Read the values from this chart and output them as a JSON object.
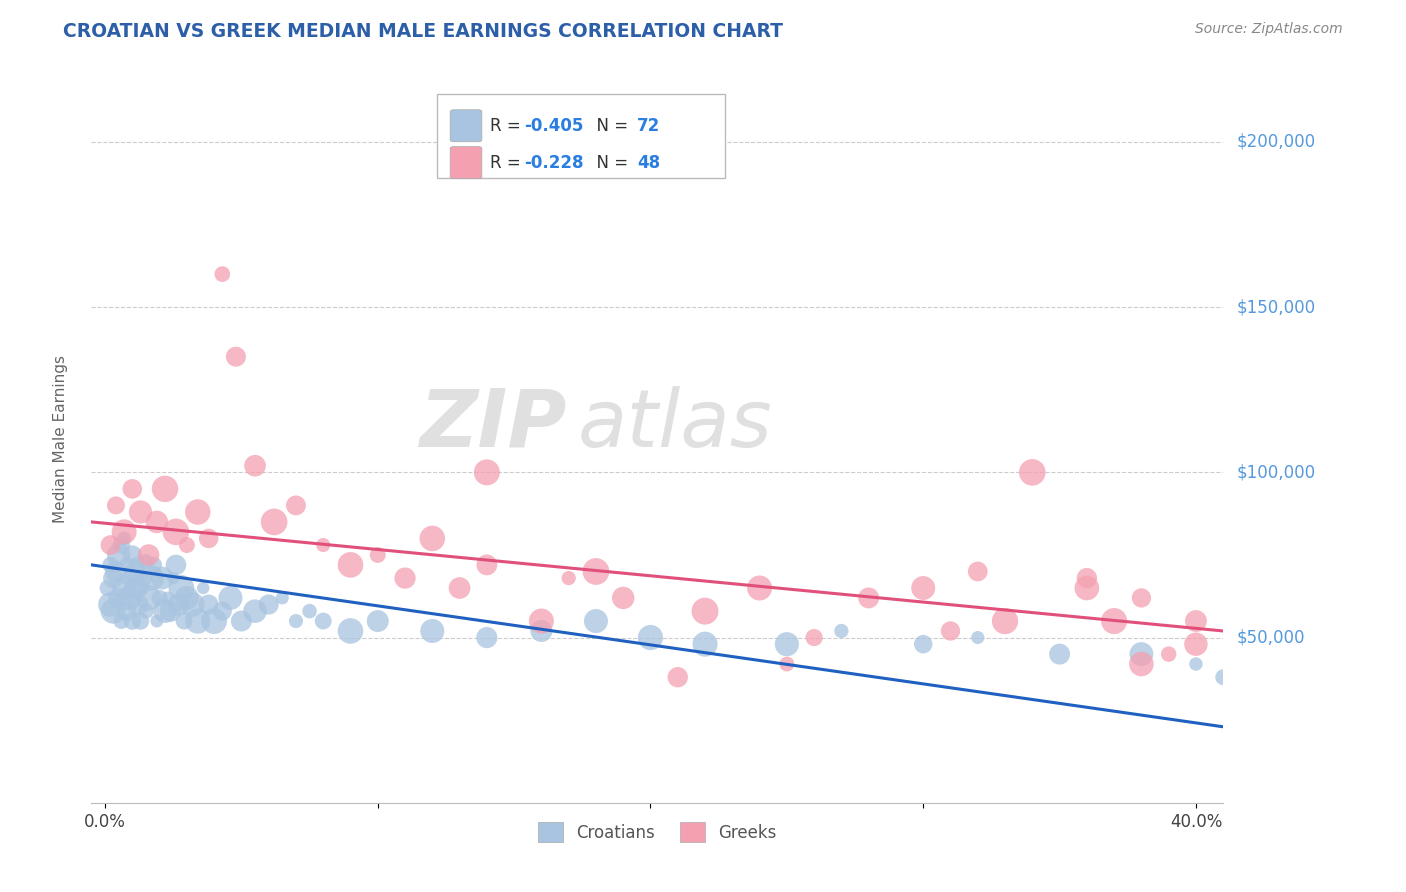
{
  "title": "CROATIAN VS GREEK MEDIAN MALE EARNINGS CORRELATION CHART",
  "source": "Source: ZipAtlas.com",
  "ylabel": "Median Male Earnings",
  "xlabel_ticks": [
    "0.0%",
    "",
    "",
    "",
    "40.0%"
  ],
  "xlabel_vals": [
    0.0,
    0.1,
    0.2,
    0.3,
    0.4
  ],
  "ytick_labels": [
    "$50,000",
    "$100,000",
    "$150,000",
    "$200,000"
  ],
  "ytick_vals": [
    50000,
    100000,
    150000,
    200000
  ],
  "ylim": [
    0,
    220000
  ],
  "xlim": [
    -0.005,
    0.41
  ],
  "croatian_color": "#a8c4e0",
  "greek_color": "#f4a0b0",
  "croatian_line_color": "#2060c0",
  "greek_line_color": "#e0507a",
  "legend_R_croatian": "-0.405",
  "legend_N_croatian": "72",
  "legend_R_greek": "-0.228",
  "legend_N_greek": "48",
  "watermark_zip": "ZIP",
  "watermark_atlas": "atlas",
  "title_color": "#2c5fa8",
  "axis_label_color": "#666666",
  "ytick_color": "#5599dd",
  "grid_color": "#cccccc",
  "background_color": "#ffffff",
  "croatian_x": [
    0.001,
    0.002,
    0.002,
    0.003,
    0.003,
    0.004,
    0.005,
    0.005,
    0.006,
    0.006,
    0.007,
    0.007,
    0.008,
    0.008,
    0.009,
    0.009,
    0.01,
    0.01,
    0.011,
    0.011,
    0.012,
    0.012,
    0.013,
    0.013,
    0.014,
    0.015,
    0.015,
    0.016,
    0.017,
    0.018,
    0.019,
    0.02,
    0.021,
    0.022,
    0.023,
    0.024,
    0.025,
    0.026,
    0.027,
    0.028,
    0.029,
    0.03,
    0.032,
    0.034,
    0.036,
    0.038,
    0.04,
    0.043,
    0.046,
    0.05,
    0.055,
    0.06,
    0.065,
    0.07,
    0.075,
    0.08,
    0.09,
    0.1,
    0.12,
    0.14,
    0.16,
    0.18,
    0.2,
    0.22,
    0.25,
    0.27,
    0.3,
    0.32,
    0.35,
    0.38,
    0.4,
    0.41
  ],
  "croatian_y": [
    65000,
    60000,
    72000,
    58000,
    68000,
    70000,
    75000,
    62000,
    78000,
    55000,
    80000,
    65000,
    58000,
    72000,
    62000,
    68000,
    75000,
    55000,
    65000,
    70000,
    60000,
    72000,
    55000,
    65000,
    68000,
    73000,
    58000,
    62000,
    68000,
    72000,
    55000,
    62000,
    68000,
    58000,
    62000,
    58000,
    68000,
    72000,
    60000,
    65000,
    55000,
    62000,
    60000,
    55000,
    65000,
    60000,
    55000,
    58000,
    62000,
    55000,
    58000,
    60000,
    62000,
    55000,
    58000,
    55000,
    52000,
    55000,
    52000,
    50000,
    52000,
    55000,
    50000,
    48000,
    48000,
    52000,
    48000,
    50000,
    45000,
    45000,
    42000,
    38000
  ],
  "greek_x": [
    0.002,
    0.004,
    0.007,
    0.01,
    0.013,
    0.016,
    0.019,
    0.022,
    0.026,
    0.03,
    0.034,
    0.038,
    0.043,
    0.048,
    0.055,
    0.062,
    0.07,
    0.08,
    0.09,
    0.1,
    0.11,
    0.12,
    0.13,
    0.14,
    0.16,
    0.17,
    0.19,
    0.21,
    0.22,
    0.24,
    0.25,
    0.26,
    0.28,
    0.3,
    0.31,
    0.32,
    0.33,
    0.34,
    0.36,
    0.37,
    0.38,
    0.39,
    0.4,
    0.4,
    0.14,
    0.18,
    0.36,
    0.38
  ],
  "greek_y": [
    78000,
    90000,
    82000,
    95000,
    88000,
    75000,
    85000,
    95000,
    82000,
    78000,
    88000,
    80000,
    160000,
    135000,
    102000,
    85000,
    90000,
    78000,
    72000,
    75000,
    68000,
    80000,
    65000,
    72000,
    55000,
    68000,
    62000,
    38000,
    58000,
    65000,
    42000,
    50000,
    62000,
    65000,
    52000,
    70000,
    55000,
    100000,
    68000,
    55000,
    62000,
    45000,
    55000,
    48000,
    100000,
    70000,
    65000,
    42000
  ],
  "croatian_trend_y0": 72000,
  "croatian_trend_y1": 23000,
  "greek_trend_y0": 85000,
  "greek_trend_y1": 52000
}
